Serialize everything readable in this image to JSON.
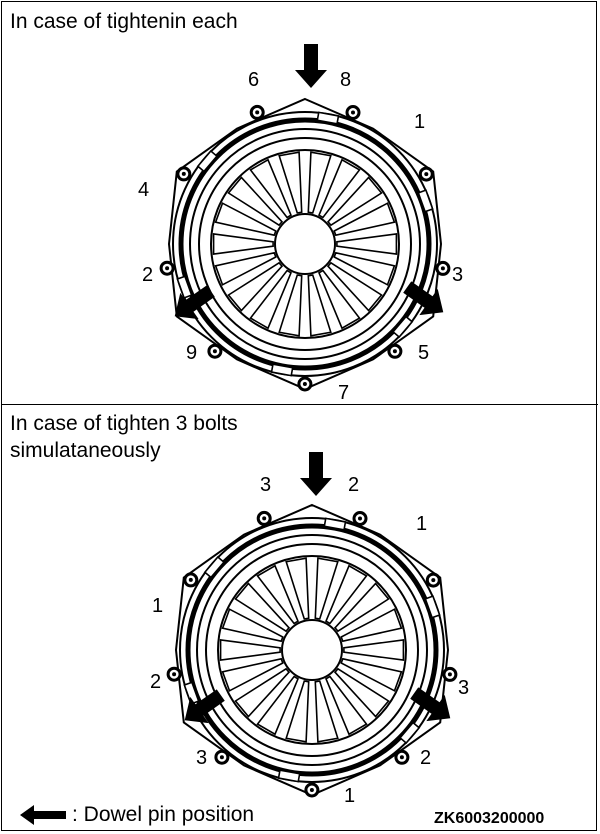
{
  "top_section": {
    "title": "In case of tightenin each",
    "labels": {
      "n6": "6",
      "n8": "8",
      "n1": "1",
      "n4": "4",
      "n2": "2",
      "n3": "3",
      "n9": "9",
      "n5": "5",
      "n7": "7"
    }
  },
  "bottom_section": {
    "title_line1": "In case of tighten 3 bolts",
    "title_line2": "simulataneously",
    "labels": {
      "top_left": "3",
      "top_right": "2",
      "upper_right": "1",
      "left_upper": "1",
      "left_mid": "2",
      "right_mid": "3",
      "lower_left": "3",
      "lower_right": "2",
      "bottom": "1"
    }
  },
  "legend": {
    "text": ": Dowel pin position"
  },
  "figure_code": "ZK6003200000"
}
